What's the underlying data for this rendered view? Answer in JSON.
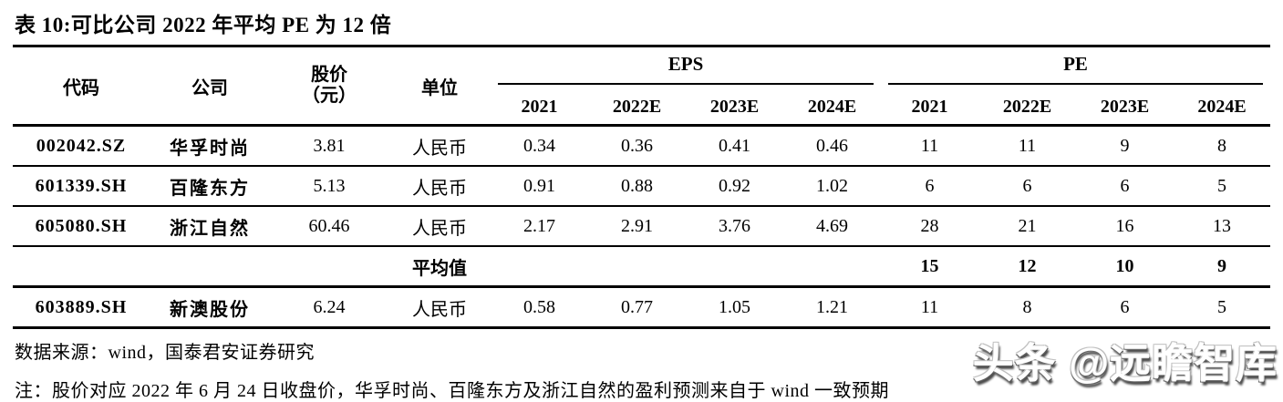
{
  "title": "表 10:可比公司 2022 年平均 PE 为 12 倍",
  "table": {
    "headers": {
      "code": "代码",
      "company": "公司",
      "price_line1": "股价",
      "price_line2": "（元）",
      "unit": "单位",
      "eps_group": "EPS",
      "pe_group": "PE",
      "years": [
        "2021",
        "2022E",
        "2023E",
        "2024E"
      ]
    },
    "rows": [
      {
        "code": "002042.SZ",
        "company": "华孚时尚",
        "price": "3.81",
        "unit": "人民币",
        "eps": [
          "0.34",
          "0.36",
          "0.41",
          "0.46"
        ],
        "pe": [
          "11",
          "11",
          "9",
          "8"
        ],
        "is_average": false
      },
      {
        "code": "601339.SH",
        "company": "百隆东方",
        "price": "5.13",
        "unit": "人民币",
        "eps": [
          "0.91",
          "0.88",
          "0.92",
          "1.02"
        ],
        "pe": [
          "6",
          "6",
          "6",
          "5"
        ],
        "is_average": false
      },
      {
        "code": "605080.SH",
        "company": "浙江自然",
        "price": "60.46",
        "unit": "人民币",
        "eps": [
          "2.17",
          "2.91",
          "3.76",
          "4.69"
        ],
        "pe": [
          "28",
          "21",
          "16",
          "13"
        ],
        "is_average": false
      },
      {
        "code": "",
        "company": "",
        "price": "",
        "unit": "平均值",
        "eps": [
          "",
          "",
          "",
          ""
        ],
        "pe": [
          "15",
          "12",
          "10",
          "9"
        ],
        "is_average": true
      },
      {
        "code": "603889.SH",
        "company": "新澳股份",
        "price": "6.24",
        "unit": "人民币",
        "eps": [
          "0.58",
          "0.77",
          "1.05",
          "1.21"
        ],
        "pe": [
          "11",
          "8",
          "6",
          "5"
        ],
        "is_average": false
      }
    ]
  },
  "footer": {
    "source": "数据来源：wind，国泰君安证券研究",
    "note": "注：股价对应 2022 年 6 月 24 日收盘价，华孚时尚、百隆东方及浙江自然的盈利预测来自于 wind 一致预期"
  },
  "watermark": "头条 @远瞻智库",
  "colors": {
    "text": "#000000",
    "background": "#ffffff",
    "rule": "#000000",
    "watermark_shadow": "#4a4a4a"
  }
}
